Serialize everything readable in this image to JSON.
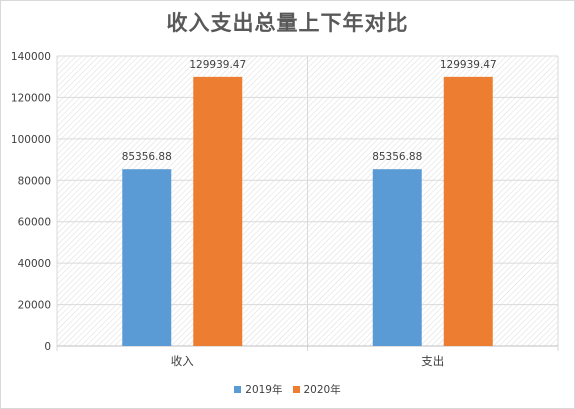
{
  "chart_data": {
    "type": "bar",
    "title": "收入支出总量上下年对比",
    "categories": [
      "收入",
      "支出"
    ],
    "series": [
      {
        "name": "2019年",
        "values": [
          85356.88,
          85356.88
        ],
        "labels": [
          "85356.88",
          "85356.88"
        ],
        "color": "#5B9BD5"
      },
      {
        "name": "2020年",
        "values": [
          129939.47,
          129939.47
        ],
        "labels": [
          "129939.47",
          "129939.47"
        ],
        "color": "#ED7D31"
      }
    ],
    "yticks": [
      "0",
      "20000",
      "40000",
      "60000",
      "80000",
      "100000",
      "120000",
      "140000"
    ],
    "ylim": [
      0,
      140000
    ],
    "grid": true,
    "plot_pattern": "diagonal-hatch",
    "legend_position": "bottom"
  }
}
